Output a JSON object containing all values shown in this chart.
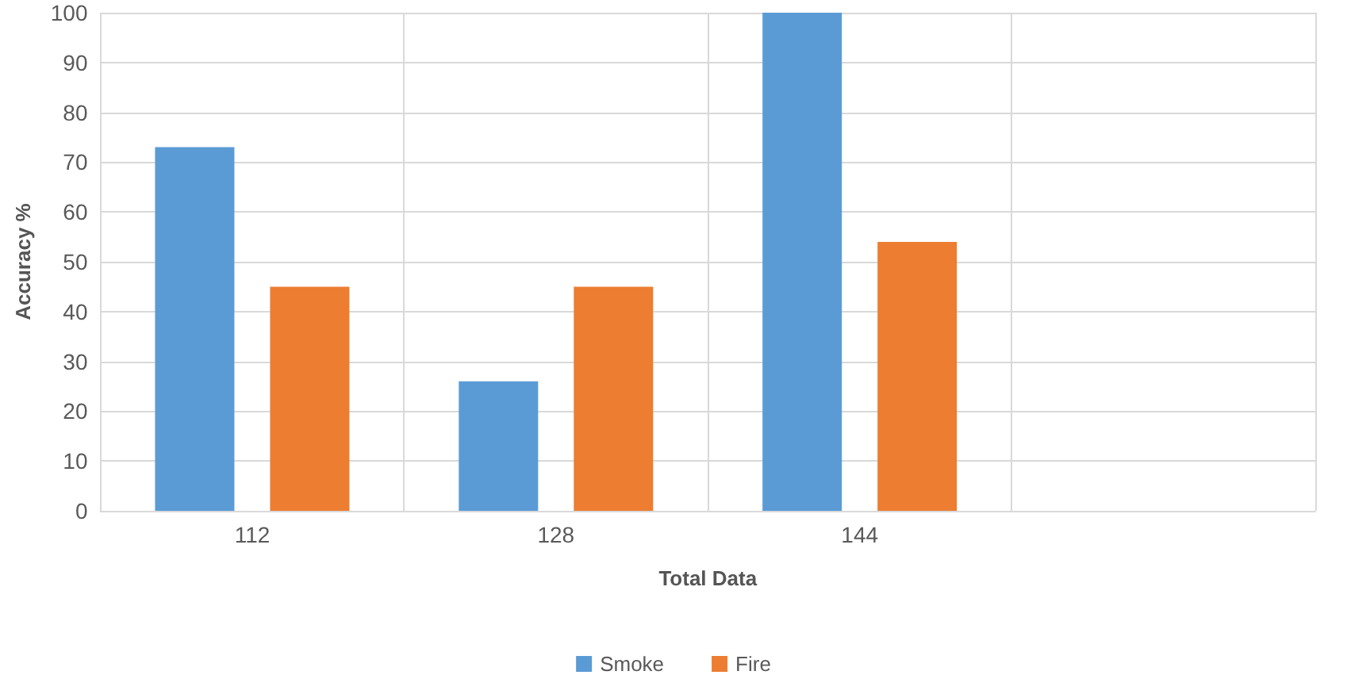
{
  "chart_data": {
    "type": "bar",
    "xlabel": "Total Data",
    "ylabel": "Accuracy %",
    "categories": [
      "112",
      "128",
      "144",
      null
    ],
    "series": [
      {
        "name": "Smoke",
        "color": "#5b9bd5",
        "values": [
          73,
          26,
          100,
          null
        ]
      },
      {
        "name": "Fire",
        "color": "#ed7d31",
        "values": [
          45,
          45,
          54,
          null
        ]
      }
    ],
    "ylim": [
      0,
      100
    ],
    "yticks": [
      0,
      10,
      20,
      30,
      40,
      50,
      60,
      70,
      80,
      90,
      100
    ],
    "grid": true,
    "legend": "bottom"
  }
}
